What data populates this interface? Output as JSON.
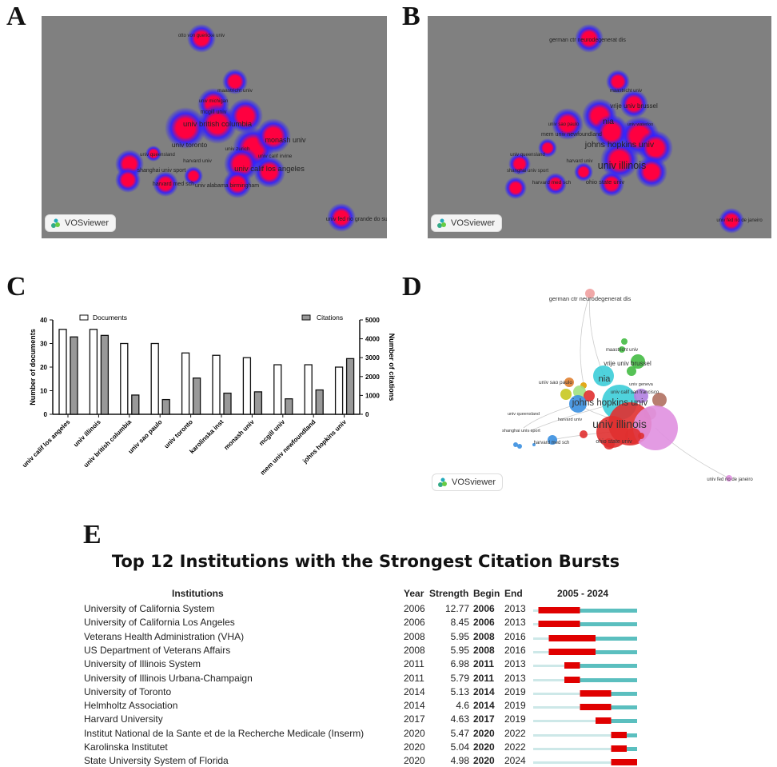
{
  "panels": {
    "a": "A",
    "b": "B",
    "c": "C",
    "d": "D",
    "e": "E"
  },
  "vosviewer_label": "VOSviewer",
  "heatmap_a": {
    "labels": [
      "otto von guericke univ",
      "maastricht univ",
      "univ michigan",
      "mcgill univ",
      "univ british columbia",
      "univ toronto",
      "univ zurich",
      "monash univ",
      "univ calif irvine",
      "univ queensland",
      "harvard univ",
      "shanghai univ sport",
      "harvard med sch",
      "univ alabama birmingham",
      "univ calif los angeles",
      "univ fed rio grande do sul"
    ]
  },
  "heatmap_b": {
    "labels": [
      "german ctr neurodegenerat dis",
      "maastricht univ",
      "vrije univ brussel",
      "univ sao paulo",
      "nia",
      "univ waterloo",
      "mem univ newfoundland",
      "johns hopkins univ",
      "univ queensland",
      "harvard univ",
      "univ illinois",
      "shanghai univ sport",
      "harvard med sch",
      "ohio state univ",
      "univ fed rio de janeiro"
    ]
  },
  "network_d": {
    "labels": [
      "german ctr neurodegenerat dis",
      "maastricht univ",
      "vrije univ brussel",
      "univ sao paulo",
      "nia",
      "univ geneva",
      "univ calif san francisco",
      "johns hopkins univ",
      "univ queensland",
      "harvard univ",
      "univ illinois",
      "shanghai univ sport",
      "harvard med sch",
      "ohio state univ",
      "univ fed rio de janeiro"
    ]
  },
  "chart_data": [
    {
      "type": "bar",
      "title": "",
      "categories": [
        "univ calif los angeles",
        "univ illinois",
        "univ british columbia",
        "univ sao paulo",
        "univ toronto",
        "karolinska inst",
        "monash univ",
        "mcgill univ",
        "mem univ newfoundland",
        "johns hopkins univ"
      ],
      "series": [
        {
          "name": "Documents",
          "axis": "left",
          "values": [
            36,
            36,
            30,
            30,
            26,
            25,
            24,
            21,
            21,
            20
          ]
        },
        {
          "name": "Citations",
          "axis": "right",
          "values": [
            4100,
            4180,
            1020,
            780,
            1920,
            1120,
            1190,
            820,
            1290,
            2950
          ]
        }
      ],
      "ylabel": "Number of documents",
      "ylabel_right": "Number of citations",
      "ylim": [
        0,
        40
      ],
      "ylim_right": [
        0,
        5000
      ],
      "yticks": [
        "0",
        "10",
        "20",
        "30",
        "40"
      ],
      "yticks_right": [
        "0",
        "1000",
        "2000",
        "3000",
        "4000",
        "5000"
      ],
      "legend_placement": "top"
    },
    {
      "type": "table",
      "title": "Top 12 Institutions with the Strongest Citation Bursts",
      "headers": {
        "inst": "Institutions",
        "year": "Year",
        "strength": "Strength",
        "begin": "Begin",
        "end": "End",
        "range": "2005 - 2024"
      },
      "range": [
        2005,
        2024
      ],
      "rows": [
        {
          "inst": "University of California System",
          "year": "2006",
          "strength": "12.77",
          "begin": "2006",
          "end": "2013"
        },
        {
          "inst": "University of California Los Angeles",
          "year": "2006",
          "strength": "8.45",
          "begin": "2006",
          "end": "2013"
        },
        {
          "inst": "Veterans Health Administration (VHA)",
          "year": "2008",
          "strength": "5.95",
          "begin": "2008",
          "end": "2016"
        },
        {
          "inst": "US Department of Veterans Affairs",
          "year": "2008",
          "strength": "5.95",
          "begin": "2008",
          "end": "2016"
        },
        {
          "inst": "University of Illinois System",
          "year": "2011",
          "strength": "6.98",
          "begin": "2011",
          "end": "2013"
        },
        {
          "inst": "University of Illinois Urbana-Champaign",
          "year": "2011",
          "strength": "5.79",
          "begin": "2011",
          "end": "2013"
        },
        {
          "inst": "University of Toronto",
          "year": "2014",
          "strength": "5.13",
          "begin": "2014",
          "end": "2019"
        },
        {
          "inst": "Helmholtz Association",
          "year": "2014",
          "strength": "4.6",
          "begin": "2014",
          "end": "2019"
        },
        {
          "inst": "Harvard University",
          "year": "2017",
          "strength": "4.63",
          "begin": "2017",
          "end": "2019"
        },
        {
          "inst": "Institut National de la Sante et de la Recherche Medicale (Inserm)",
          "year": "2020",
          "strength": "5.47",
          "begin": "2020",
          "end": "2022"
        },
        {
          "inst": "Karolinska Institutet",
          "year": "2020",
          "strength": "5.04",
          "begin": "2020",
          "end": "2022"
        },
        {
          "inst": "State University System of Florida",
          "year": "2020",
          "strength": "4.98",
          "begin": "2020",
          "end": "2024"
        }
      ]
    }
  ],
  "colors": {
    "heat_bg": "#808080",
    "heat_hot": "#ff0040",
    "heat_cool": "#3020ff",
    "doc_bar": "#ffffff",
    "cit_bar": "#999999",
    "burst": "#e00000",
    "active": "#5bbfbf",
    "inactive": "#cde8e8"
  }
}
